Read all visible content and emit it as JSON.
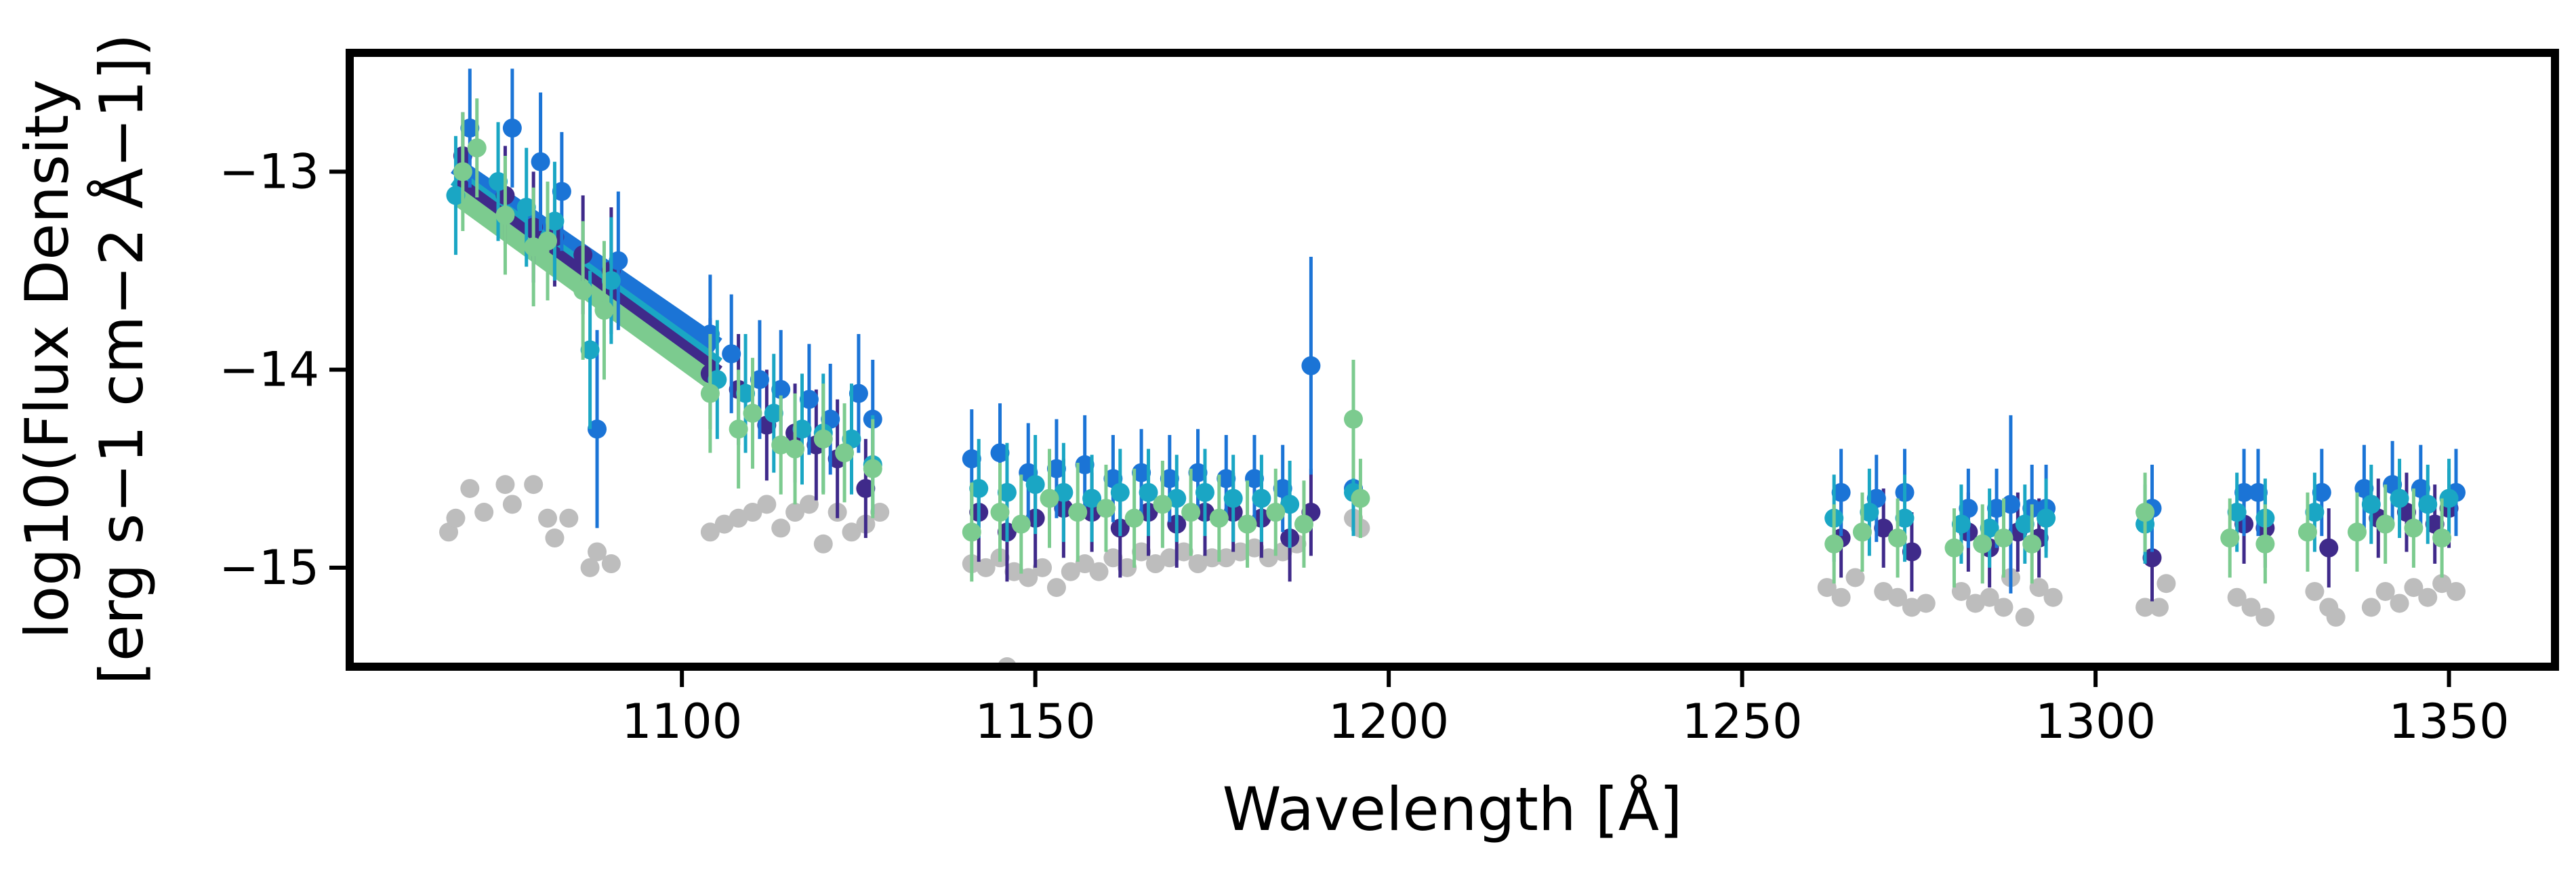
{
  "chart_data": {
    "type": "scatter",
    "title": "",
    "xlabel": "Wavelength [Å]",
    "ylabel_line1": "log10(Flux Density",
    "ylabel_line2": "[erg s−1 cm−2 Å−1])",
    "xlim": [
      1053,
      1365
    ],
    "ylim": [
      -15.5,
      -12.4
    ],
    "grid": false,
    "legend": "none",
    "x_ticks": [
      1100,
      1150,
      1200,
      1250,
      1300,
      1350
    ],
    "x_tick_labels": [
      "1100",
      "1150",
      "1200",
      "1250",
      "1300",
      "1350"
    ],
    "y_ticks": [
      -13,
      -14,
      -15
    ],
    "y_tick_labels": [
      "−13",
      "−14",
      "−15"
    ],
    "colors": {
      "series_1": "#3f2a8a",
      "series_2": "#1b74d6",
      "series_3": "#1aa6c4",
      "series_4": "#7ccb8f",
      "background_points": "#bdbdbd",
      "frame": "#000000"
    },
    "model_lines": [
      {
        "color": "#1b74d6",
        "x": [
          1068,
          1105
        ],
        "y": [
          -12.97,
          -13.88
        ]
      },
      {
        "color": "#1aa6c4",
        "x": [
          1068,
          1105
        ],
        "y": [
          -13.03,
          -13.98
        ]
      },
      {
        "color": "#3f2a8a",
        "x": [
          1068,
          1105
        ],
        "y": [
          -13.06,
          -14.02
        ]
      },
      {
        "color": "#7ccb8f",
        "x": [
          1068,
          1105
        ],
        "y": [
          -13.12,
          -14.08
        ]
      }
    ],
    "series": [
      {
        "color": "#3f2a8a",
        "points": [
          [
            1069,
            -12.92,
            0.22
          ],
          [
            1075,
            -13.12,
            0.25
          ],
          [
            1079,
            -13.28,
            0.28
          ],
          [
            1082,
            -13.33,
            0.25
          ],
          [
            1086,
            -13.42,
            0.3
          ],
          [
            1090,
            -13.5,
            0.32
          ],
          [
            1104,
            -14.02,
            0.28
          ],
          [
            1108,
            -14.1,
            0.28
          ],
          [
            1112,
            -14.28,
            0.28
          ],
          [
            1116,
            -14.32,
            0.25
          ],
          [
            1119,
            -14.38,
            0.28
          ],
          [
            1122,
            -14.45,
            0.3
          ],
          [
            1126,
            -14.6,
            0.25
          ],
          [
            1142,
            -14.72,
            0.25
          ],
          [
            1146,
            -14.82,
            0.25
          ],
          [
            1150,
            -14.75,
            0.25
          ],
          [
            1154,
            -14.7,
            0.25
          ],
          [
            1158,
            -14.72,
            0.2
          ],
          [
            1162,
            -14.8,
            0.25
          ],
          [
            1166,
            -14.72,
            0.22
          ],
          [
            1170,
            -14.78,
            0.22
          ],
          [
            1174,
            -14.72,
            0.22
          ],
          [
            1178,
            -14.72,
            0.2
          ],
          [
            1182,
            -14.75,
            0.2
          ],
          [
            1186,
            -14.85,
            0.22
          ],
          [
            1189,
            -14.72,
            0.22
          ],
          [
            1264,
            -14.85,
            0.2
          ],
          [
            1270,
            -14.8,
            0.2
          ],
          [
            1274,
            -14.92,
            0.2
          ],
          [
            1282,
            -14.82,
            0.2
          ],
          [
            1285,
            -14.9,
            0.2
          ],
          [
            1289,
            -14.82,
            0.2
          ],
          [
            1292,
            -14.85,
            0.2
          ],
          [
            1308,
            -14.95,
            0.22
          ],
          [
            1321,
            -14.78,
            0.2
          ],
          [
            1324,
            -14.8,
            0.2
          ],
          [
            1333,
            -14.9,
            0.2
          ],
          [
            1340,
            -14.75,
            0.2
          ],
          [
            1344,
            -14.72,
            0.2
          ],
          [
            1348,
            -14.78,
            0.2
          ],
          [
            1350,
            -14.7,
            0.2
          ]
        ]
      },
      {
        "color": "#1b74d6",
        "points": [
          [
            1070,
            -12.78,
            0.3
          ],
          [
            1076,
            -12.78,
            0.3
          ],
          [
            1080,
            -12.95,
            0.35
          ],
          [
            1083,
            -13.1,
            0.3
          ],
          [
            1088,
            -14.3,
            0.5
          ],
          [
            1091,
            -13.45,
            0.35
          ],
          [
            1104,
            -13.82,
            0.3
          ],
          [
            1107,
            -13.92,
            0.3
          ],
          [
            1111,
            -14.05,
            0.3
          ],
          [
            1114,
            -14.1,
            0.3
          ],
          [
            1118,
            -14.15,
            0.28
          ],
          [
            1121,
            -14.25,
            0.28
          ],
          [
            1125,
            -14.12,
            0.3
          ],
          [
            1127,
            -14.25,
            0.3
          ],
          [
            1141,
            -14.45,
            0.25
          ],
          [
            1145,
            -14.42,
            0.25
          ],
          [
            1149,
            -14.52,
            0.25
          ],
          [
            1153,
            -14.5,
            0.25
          ],
          [
            1157,
            -14.48,
            0.25
          ],
          [
            1161,
            -14.55,
            0.22
          ],
          [
            1165,
            -14.52,
            0.22
          ],
          [
            1169,
            -14.55,
            0.22
          ],
          [
            1173,
            -14.52,
            0.22
          ],
          [
            1177,
            -14.55,
            0.22
          ],
          [
            1181,
            -14.55,
            0.22
          ],
          [
            1185,
            -14.6,
            0.22
          ],
          [
            1189,
            -13.98,
            0.55
          ],
          [
            1195,
            -14.6,
            0.2
          ],
          [
            1264,
            -14.62,
            0.22
          ],
          [
            1269,
            -14.65,
            0.22
          ],
          [
            1273,
            -14.62,
            0.22
          ],
          [
            1282,
            -14.7,
            0.2
          ],
          [
            1286,
            -14.7,
            0.2
          ],
          [
            1288,
            -14.68,
            0.45
          ],
          [
            1291,
            -14.7,
            0.22
          ],
          [
            1293,
            -14.7,
            0.22
          ],
          [
            1308,
            -14.7,
            0.22
          ],
          [
            1321,
            -14.62,
            0.22
          ],
          [
            1323,
            -14.62,
            0.22
          ],
          [
            1332,
            -14.62,
            0.22
          ],
          [
            1338,
            -14.6,
            0.22
          ],
          [
            1342,
            -14.58,
            0.22
          ],
          [
            1346,
            -14.6,
            0.22
          ],
          [
            1351,
            -14.62,
            0.22
          ]
        ]
      },
      {
        "color": "#1aa6c4",
        "points": [
          [
            1068,
            -13.12,
            0.3
          ],
          [
            1074,
            -13.05,
            0.3
          ],
          [
            1078,
            -13.18,
            0.3
          ],
          [
            1082,
            -13.25,
            0.3
          ],
          [
            1087,
            -13.9,
            0.4
          ],
          [
            1090,
            -13.55,
            0.32
          ],
          [
            1105,
            -14.05,
            0.3
          ],
          [
            1109,
            -14.12,
            0.3
          ],
          [
            1113,
            -14.22,
            0.3
          ],
          [
            1117,
            -14.3,
            0.28
          ],
          [
            1120,
            -14.32,
            0.3
          ],
          [
            1124,
            -14.35,
            0.28
          ],
          [
            1127,
            -14.48,
            0.25
          ],
          [
            1142,
            -14.6,
            0.25
          ],
          [
            1146,
            -14.62,
            0.25
          ],
          [
            1150,
            -14.58,
            0.25
          ],
          [
            1154,
            -14.62,
            0.25
          ],
          [
            1158,
            -14.65,
            0.22
          ],
          [
            1162,
            -14.62,
            0.22
          ],
          [
            1166,
            -14.62,
            0.22
          ],
          [
            1170,
            -14.65,
            0.22
          ],
          [
            1174,
            -14.62,
            0.22
          ],
          [
            1178,
            -14.65,
            0.22
          ],
          [
            1182,
            -14.65,
            0.22
          ],
          [
            1186,
            -14.68,
            0.22
          ],
          [
            1195,
            -14.62,
            0.22
          ],
          [
            1263,
            -14.75,
            0.22
          ],
          [
            1268,
            -14.72,
            0.22
          ],
          [
            1273,
            -14.75,
            0.22
          ],
          [
            1281,
            -14.78,
            0.2
          ],
          [
            1285,
            -14.8,
            0.2
          ],
          [
            1290,
            -14.78,
            0.2
          ],
          [
            1293,
            -14.75,
            0.2
          ],
          [
            1307,
            -14.78,
            0.2
          ],
          [
            1320,
            -14.72,
            0.2
          ],
          [
            1324,
            -14.75,
            0.2
          ],
          [
            1331,
            -14.72,
            0.2
          ],
          [
            1339,
            -14.68,
            0.2
          ],
          [
            1343,
            -14.65,
            0.2
          ],
          [
            1347,
            -14.68,
            0.2
          ],
          [
            1350,
            -14.65,
            0.2
          ]
        ]
      },
      {
        "color": "#7ccb8f",
        "points": [
          [
            1069,
            -13.0,
            0.3
          ],
          [
            1071,
            -12.88,
            0.25
          ],
          [
            1075,
            -13.22,
            0.3
          ],
          [
            1079,
            -13.38,
            0.3
          ],
          [
            1081,
            -13.35,
            0.3
          ],
          [
            1086,
            -13.6,
            0.35
          ],
          [
            1089,
            -13.7,
            0.35
          ],
          [
            1104,
            -14.12,
            0.3
          ],
          [
            1108,
            -14.3,
            0.3
          ],
          [
            1110,
            -14.22,
            0.28
          ],
          [
            1114,
            -14.38,
            0.25
          ],
          [
            1116,
            -14.4,
            0.28
          ],
          [
            1120,
            -14.35,
            0.28
          ],
          [
            1123,
            -14.42,
            0.25
          ],
          [
            1127,
            -14.5,
            0.25
          ],
          [
            1141,
            -14.82,
            0.25
          ],
          [
            1145,
            -14.72,
            0.25
          ],
          [
            1148,
            -14.78,
            0.25
          ],
          [
            1152,
            -14.65,
            0.25
          ],
          [
            1156,
            -14.72,
            0.25
          ],
          [
            1160,
            -14.7,
            0.22
          ],
          [
            1164,
            -14.75,
            0.25
          ],
          [
            1168,
            -14.68,
            0.22
          ],
          [
            1172,
            -14.72,
            0.22
          ],
          [
            1176,
            -14.75,
            0.22
          ],
          [
            1180,
            -14.78,
            0.22
          ],
          [
            1184,
            -14.72,
            0.22
          ],
          [
            1188,
            -14.78,
            0.22
          ],
          [
            1195,
            -14.25,
            0.3
          ],
          [
            1196,
            -14.65,
            0.2
          ],
          [
            1263,
            -14.88,
            0.2
          ],
          [
            1267,
            -14.82,
            0.2
          ],
          [
            1272,
            -14.85,
            0.2
          ],
          [
            1280,
            -14.9,
            0.2
          ],
          [
            1284,
            -14.88,
            0.2
          ],
          [
            1287,
            -14.85,
            0.2
          ],
          [
            1291,
            -14.88,
            0.2
          ],
          [
            1307,
            -14.72,
            0.2
          ],
          [
            1319,
            -14.85,
            0.2
          ],
          [
            1324,
            -14.88,
            0.2
          ],
          [
            1330,
            -14.82,
            0.2
          ],
          [
            1337,
            -14.82,
            0.2
          ],
          [
            1341,
            -14.78,
            0.2
          ],
          [
            1345,
            -14.8,
            0.2
          ],
          [
            1349,
            -14.85,
            0.2
          ]
        ]
      }
    ],
    "background_points": [
      [
        1067,
        -14.82
      ],
      [
        1068,
        -14.75
      ],
      [
        1070,
        -14.6
      ],
      [
        1072,
        -14.72
      ],
      [
        1075,
        -14.58
      ],
      [
        1076,
        -14.68
      ],
      [
        1079,
        -14.58
      ],
      [
        1081,
        -14.75
      ],
      [
        1082,
        -14.85
      ],
      [
        1084,
        -14.75
      ],
      [
        1087,
        -15.0
      ],
      [
        1088,
        -14.92
      ],
      [
        1090,
        -14.98
      ],
      [
        1104,
        -14.82
      ],
      [
        1106,
        -14.78
      ],
      [
        1108,
        -14.75
      ],
      [
        1110,
        -14.72
      ],
      [
        1112,
        -14.68
      ],
      [
        1114,
        -14.8
      ],
      [
        1116,
        -14.72
      ],
      [
        1118,
        -14.68
      ],
      [
        1120,
        -14.88
      ],
      [
        1122,
        -14.72
      ],
      [
        1124,
        -14.82
      ],
      [
        1126,
        -14.78
      ],
      [
        1128,
        -14.72
      ],
      [
        1141,
        -14.98
      ],
      [
        1143,
        -15.0
      ],
      [
        1145,
        -14.95
      ],
      [
        1147,
        -15.02
      ],
      [
        1149,
        -15.05
      ],
      [
        1151,
        -15.0
      ],
      [
        1153,
        -15.1
      ],
      [
        1155,
        -15.02
      ],
      [
        1157,
        -14.98
      ],
      [
        1159,
        -15.02
      ],
      [
        1161,
        -14.95
      ],
      [
        1163,
        -15.0
      ],
      [
        1165,
        -14.92
      ],
      [
        1167,
        -14.98
      ],
      [
        1169,
        -14.95
      ],
      [
        1171,
        -14.92
      ],
      [
        1173,
        -14.98
      ],
      [
        1175,
        -14.95
      ],
      [
        1177,
        -14.95
      ],
      [
        1179,
        -14.92
      ],
      [
        1181,
        -14.9
      ],
      [
        1183,
        -14.95
      ],
      [
        1185,
        -14.92
      ],
      [
        1187,
        -14.88
      ],
      [
        1195,
        -14.75
      ],
      [
        1196,
        -14.8
      ],
      [
        1262,
        -15.1
      ],
      [
        1264,
        -15.15
      ],
      [
        1266,
        -15.05
      ],
      [
        1270,
        -15.12
      ],
      [
        1272,
        -15.15
      ],
      [
        1274,
        -15.2
      ],
      [
        1276,
        -15.18
      ],
      [
        1281,
        -15.12
      ],
      [
        1283,
        -15.18
      ],
      [
        1285,
        -15.15
      ],
      [
        1287,
        -15.2
      ],
      [
        1288,
        -15.05
      ],
      [
        1290,
        -15.25
      ],
      [
        1292,
        -15.1
      ],
      [
        1294,
        -15.15
      ],
      [
        1307,
        -15.2
      ],
      [
        1309,
        -15.2
      ],
      [
        1310,
        -15.08
      ],
      [
        1320,
        -15.15
      ],
      [
        1322,
        -15.2
      ],
      [
        1324,
        -15.25
      ],
      [
        1331,
        -15.12
      ],
      [
        1333,
        -15.2
      ],
      [
        1334,
        -15.25
      ],
      [
        1339,
        -15.2
      ],
      [
        1341,
        -15.12
      ],
      [
        1343,
        -15.18
      ],
      [
        1345,
        -15.1
      ],
      [
        1347,
        -15.15
      ],
      [
        1349,
        -15.08
      ],
      [
        1351,
        -15.12
      ],
      [
        1146,
        -15.5
      ]
    ]
  }
}
